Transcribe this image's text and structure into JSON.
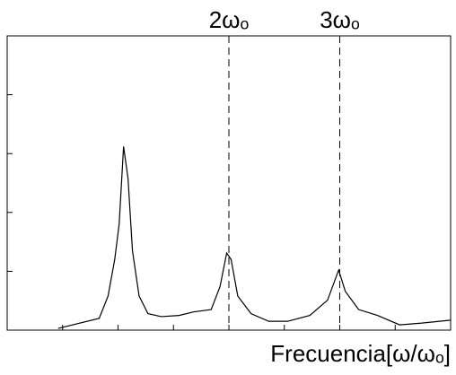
{
  "chart_data": {
    "type": "line",
    "x": [
      0.46,
      0.83,
      0.91,
      0.97,
      1.01,
      1.05,
      1.09,
      1.13,
      1.19,
      1.27,
      1.39,
      1.55,
      1.68,
      1.84,
      1.92,
      1.98,
      2.02,
      2.08,
      2.2,
      2.36,
      2.53,
      2.73,
      2.89,
      2.99,
      3.05,
      3.17,
      3.34,
      3.54,
      3.74,
      4
    ],
    "series": [
      {
        "color": "#000000",
        "values": [
          0.03,
          0.2,
          0.58,
          1.2,
          1.8,
          3.12,
          2.58,
          1.35,
          0.58,
          0.28,
          0.23,
          0.25,
          0.31,
          0.35,
          0.74,
          1.31,
          1.2,
          0.58,
          0.28,
          0.15,
          0.15,
          0.25,
          0.51,
          1.02,
          0.66,
          0.35,
          0.25,
          0.09,
          0.12,
          0.17
        ]
      }
    ],
    "xlim": [
      0,
      4
    ],
    "ylim": [
      0,
      5
    ],
    "xticks": [
      0.5,
      1,
      1.5,
      2,
      2.5,
      3,
      3.5
    ],
    "yticks": [
      1,
      2,
      3,
      4
    ],
    "tick_labels": false,
    "x_label": "Frecuencia[ω/ωₒ]",
    "annotations": [
      {
        "x": 2,
        "text": "2ωₒ"
      },
      {
        "x": 3,
        "text": "3ωₒ"
      }
    ]
  }
}
